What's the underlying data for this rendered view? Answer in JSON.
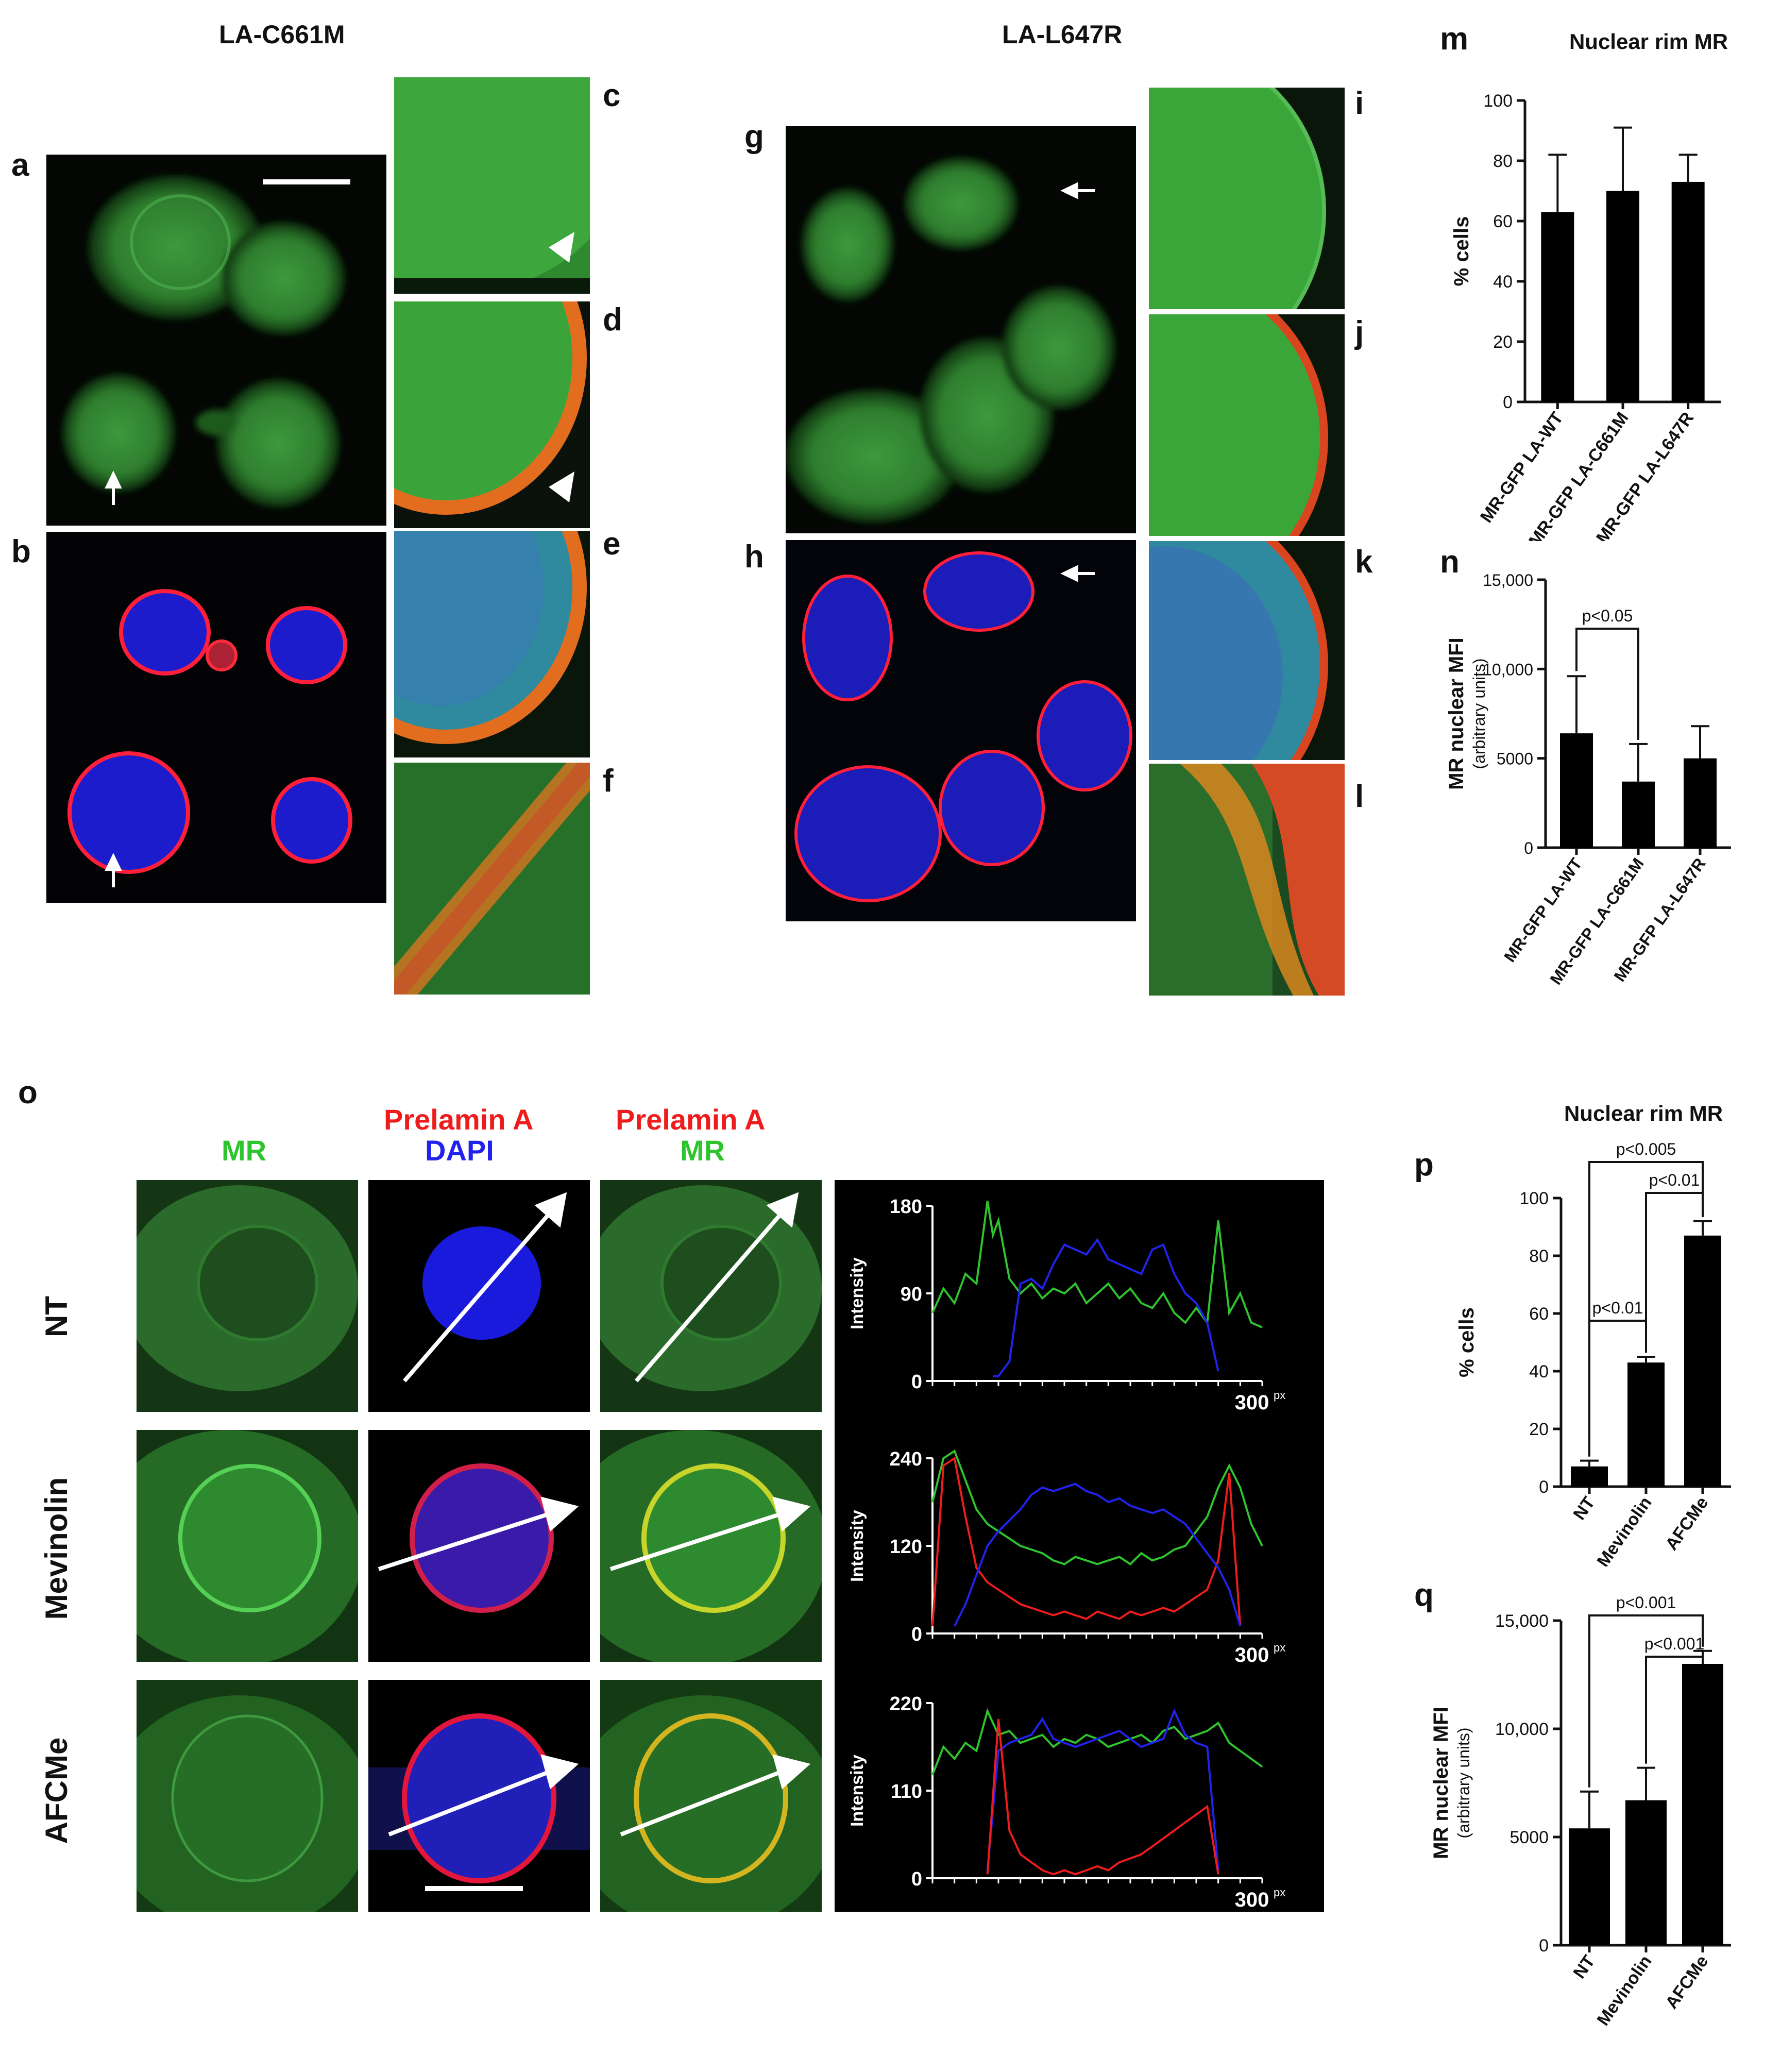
{
  "figure": {
    "headers": {
      "left": "LA-C661M",
      "middle": "LA-L647R"
    },
    "panel_labels": {
      "a": "a",
      "b": "b",
      "c": "c",
      "d": "d",
      "e": "e",
      "f": "f",
      "g": "g",
      "h": "h",
      "i": "i",
      "j": "j",
      "k": "k",
      "l": "l",
      "m": "m",
      "n": "n",
      "o": "o",
      "p": "p",
      "q": "q"
    },
    "panel_o": {
      "col_labels": {
        "mr": "MR",
        "prelamin1": "Prelamin A",
        "dapi": "DAPI",
        "prelamin2": "Prelamin A",
        "mr2": "MR"
      },
      "row_labels": [
        "NT",
        "Mevinolin",
        "AFCMe"
      ],
      "colors": {
        "mr": "#2ec42e",
        "prelamin": "#ee1c1c",
        "dapi": "#2222ee"
      }
    }
  },
  "chart_data": [
    {
      "id": "m",
      "type": "bar",
      "title": "Nuclear rim MR",
      "ylabel": "% cells",
      "categories": [
        "MR-GFP LA-WT",
        "MR-GFP LA-C661M",
        "MR-GFP LA-L647R"
      ],
      "values": [
        63,
        70,
        73
      ],
      "errors": [
        19,
        21,
        9
      ],
      "ylim": [
        0,
        100
      ],
      "yticks": [
        "0",
        "20",
        "40",
        "60",
        "80",
        "100"
      ],
      "yticks_values": [
        0,
        20,
        40,
        60,
        80,
        100
      ]
    },
    {
      "id": "n",
      "type": "bar",
      "title": "",
      "ylabel": "MR nuclear MFI",
      "ylabel_sub": "(arbitrary units)",
      "categories": [
        "MR-GFP LA-WT",
        "MR-GFP LA-C661M",
        "MR-GFP LA-L647R"
      ],
      "values": [
        6400,
        3700,
        5000
      ],
      "errors": [
        3200,
        2100,
        1800
      ],
      "ylim": [
        0,
        15000
      ],
      "yticks": [
        "0",
        "5000",
        "10,000",
        "15,000"
      ],
      "yticks_values": [
        0,
        5000,
        10000,
        15000
      ],
      "annotations": [
        {
          "text": "p<0.05",
          "from": 0,
          "to": 1
        }
      ]
    },
    {
      "id": "p",
      "type": "bar",
      "title": "Nuclear rim MR",
      "ylabel": "% cells",
      "categories": [
        "NT",
        "Mevinolin",
        "AFCMe"
      ],
      "values": [
        7,
        43,
        87
      ],
      "errors": [
        2,
        2,
        5
      ],
      "ylim": [
        0,
        100
      ],
      "yticks": [
        "0",
        "20",
        "40",
        "60",
        "80",
        "100"
      ],
      "yticks_values": [
        0,
        20,
        40,
        60,
        80,
        100
      ],
      "annotations": [
        {
          "text": "p<0.005",
          "from": 0,
          "to": 2
        },
        {
          "text": "p<0.01",
          "from": 1,
          "to": 2
        },
        {
          "text": "p<0.01",
          "from": 0,
          "to": 1
        }
      ]
    },
    {
      "id": "q",
      "type": "bar",
      "title": "",
      "ylabel": "MR nuclear MFI",
      "ylabel_sub": "(arbitrary units)",
      "categories": [
        "NT",
        "Mevinolin",
        "AFCMe"
      ],
      "values": [
        5400,
        6700,
        13000
      ],
      "errors": [
        1700,
        1500,
        600
      ],
      "ylim": [
        0,
        15000
      ],
      "yticks": [
        "0",
        "5000",
        "10,000",
        "15,000"
      ],
      "yticks_values": [
        0,
        5000,
        10000,
        15000
      ],
      "annotations": [
        {
          "text": "p<0.001",
          "from": 0,
          "to": 2
        },
        {
          "text": "p<0.001",
          "from": 1,
          "to": 2
        }
      ]
    },
    {
      "id": "profile-nt",
      "type": "line",
      "ylabel": "Intensity",
      "xlim": [
        0,
        300
      ],
      "ylim": [
        0,
        180
      ],
      "yticks": [
        "0",
        "90",
        "180"
      ],
      "yticks_values": [
        0,
        90,
        180
      ],
      "x_end_label": "300",
      "x_unit": "px",
      "series": [
        {
          "color": "#2ec42e",
          "x": [
            0,
            10,
            20,
            30,
            40,
            50,
            55,
            60,
            70,
            80,
            90,
            100,
            110,
            120,
            130,
            140,
            150,
            160,
            170,
            180,
            190,
            200,
            210,
            220,
            230,
            240,
            250,
            260,
            270,
            280,
            290,
            300
          ],
          "y": [
            70,
            95,
            80,
            110,
            100,
            185,
            150,
            165,
            105,
            90,
            100,
            85,
            95,
            90,
            100,
            80,
            90,
            100,
            85,
            95,
            80,
            75,
            90,
            70,
            60,
            75,
            60,
            165,
            70,
            90,
            60,
            55
          ]
        },
        {
          "color": "#2222ee",
          "x": [
            0,
            10,
            20,
            30,
            40,
            50,
            55,
            60,
            70,
            80,
            90,
            100,
            110,
            120,
            130,
            140,
            150,
            160,
            170,
            180,
            190,
            200,
            210,
            220,
            230,
            240,
            250,
            260,
            270,
            280,
            290,
            300
          ],
          "y": [
            null,
            null,
            null,
            null,
            null,
            null,
            5,
            5,
            20,
            100,
            105,
            95,
            120,
            140,
            135,
            130,
            145,
            125,
            120,
            115,
            110,
            135,
            140,
            110,
            90,
            80,
            60,
            10,
            null,
            null,
            null,
            null
          ]
        }
      ]
    },
    {
      "id": "profile-mevinolin",
      "type": "line",
      "ylabel": "Intensity",
      "xlim": [
        0,
        300
      ],
      "ylim": [
        0,
        240
      ],
      "yticks": [
        "0",
        "120",
        "240"
      ],
      "yticks_values": [
        0,
        120,
        240
      ],
      "x_end_label": "300",
      "x_unit": "px",
      "series": [
        {
          "color": "#2ec42e",
          "x": [
            0,
            10,
            20,
            30,
            40,
            50,
            60,
            70,
            80,
            90,
            100,
            110,
            120,
            130,
            140,
            150,
            160,
            170,
            180,
            190,
            200,
            210,
            220,
            230,
            240,
            250,
            260,
            270,
            280,
            290,
            300
          ],
          "y": [
            180,
            240,
            250,
            210,
            170,
            150,
            140,
            130,
            120,
            115,
            110,
            100,
            95,
            105,
            100,
            95,
            100,
            105,
            95,
            110,
            100,
            105,
            115,
            120,
            140,
            160,
            200,
            230,
            200,
            150,
            120
          ]
        },
        {
          "color": "#ee1c1c",
          "x": [
            0,
            10,
            20,
            30,
            40,
            50,
            60,
            70,
            80,
            90,
            100,
            110,
            120,
            130,
            140,
            150,
            160,
            170,
            180,
            190,
            200,
            210,
            220,
            230,
            240,
            250,
            260,
            270,
            280,
            290,
            300
          ],
          "y": [
            10,
            230,
            240,
            160,
            90,
            70,
            60,
            50,
            40,
            35,
            30,
            25,
            30,
            25,
            20,
            30,
            25,
            20,
            30,
            25,
            30,
            35,
            30,
            40,
            50,
            60,
            100,
            220,
            10,
            null,
            null
          ]
        },
        {
          "color": "#2222ee",
          "x": [
            0,
            10,
            20,
            30,
            40,
            50,
            60,
            70,
            80,
            90,
            100,
            110,
            120,
            130,
            140,
            150,
            160,
            170,
            180,
            190,
            200,
            210,
            220,
            230,
            240,
            250,
            260,
            270,
            280,
            290,
            300
          ],
          "y": [
            null,
            null,
            10,
            40,
            80,
            120,
            140,
            155,
            170,
            190,
            200,
            195,
            200,
            205,
            195,
            190,
            180,
            185,
            175,
            170,
            165,
            170,
            160,
            150,
            130,
            110,
            90,
            60,
            10,
            null,
            null
          ]
        }
      ]
    },
    {
      "id": "profile-afcme",
      "type": "line",
      "ylabel": "Intensity",
      "xlim": [
        0,
        300
      ],
      "ylim": [
        0,
        220
      ],
      "yticks": [
        "0",
        "110",
        "220"
      ],
      "yticks_values": [
        0,
        110,
        220
      ],
      "x_end_label": "300",
      "x_unit": "px",
      "series": [
        {
          "color": "#2ec42e",
          "x": [
            0,
            10,
            20,
            30,
            40,
            50,
            60,
            70,
            80,
            90,
            100,
            110,
            120,
            130,
            140,
            150,
            160,
            170,
            180,
            190,
            200,
            210,
            220,
            230,
            240,
            250,
            260,
            270,
            280,
            290,
            300
          ],
          "y": [
            130,
            165,
            150,
            170,
            160,
            210,
            180,
            185,
            170,
            175,
            180,
            165,
            175,
            170,
            180,
            175,
            165,
            170,
            175,
            180,
            170,
            185,
            190,
            175,
            180,
            185,
            195,
            170,
            160,
            150,
            140
          ]
        },
        {
          "color": "#2222ee",
          "x": [
            0,
            10,
            20,
            30,
            40,
            50,
            60,
            70,
            80,
            90,
            100,
            110,
            120,
            130,
            140,
            150,
            160,
            170,
            180,
            190,
            200,
            210,
            220,
            230,
            240,
            250,
            260,
            270,
            280,
            290,
            300
          ],
          "y": [
            null,
            null,
            null,
            null,
            null,
            10,
            160,
            170,
            175,
            180,
            200,
            175,
            170,
            165,
            170,
            175,
            180,
            185,
            175,
            165,
            170,
            175,
            210,
            180,
            170,
            165,
            10,
            null,
            null,
            null,
            null
          ]
        },
        {
          "color": "#ee1c1c",
          "x": [
            0,
            10,
            20,
            30,
            40,
            50,
            60,
            70,
            80,
            90,
            100,
            110,
            120,
            130,
            140,
            150,
            160,
            170,
            180,
            190,
            200,
            210,
            220,
            230,
            240,
            250,
            260,
            270,
            280,
            290,
            300
          ],
          "y": [
            null,
            null,
            null,
            null,
            null,
            5,
            200,
            60,
            30,
            20,
            10,
            5,
            10,
            5,
            10,
            15,
            10,
            20,
            25,
            30,
            40,
            50,
            60,
            70,
            80,
            90,
            5,
            null,
            null,
            null,
            null
          ]
        }
      ]
    }
  ]
}
